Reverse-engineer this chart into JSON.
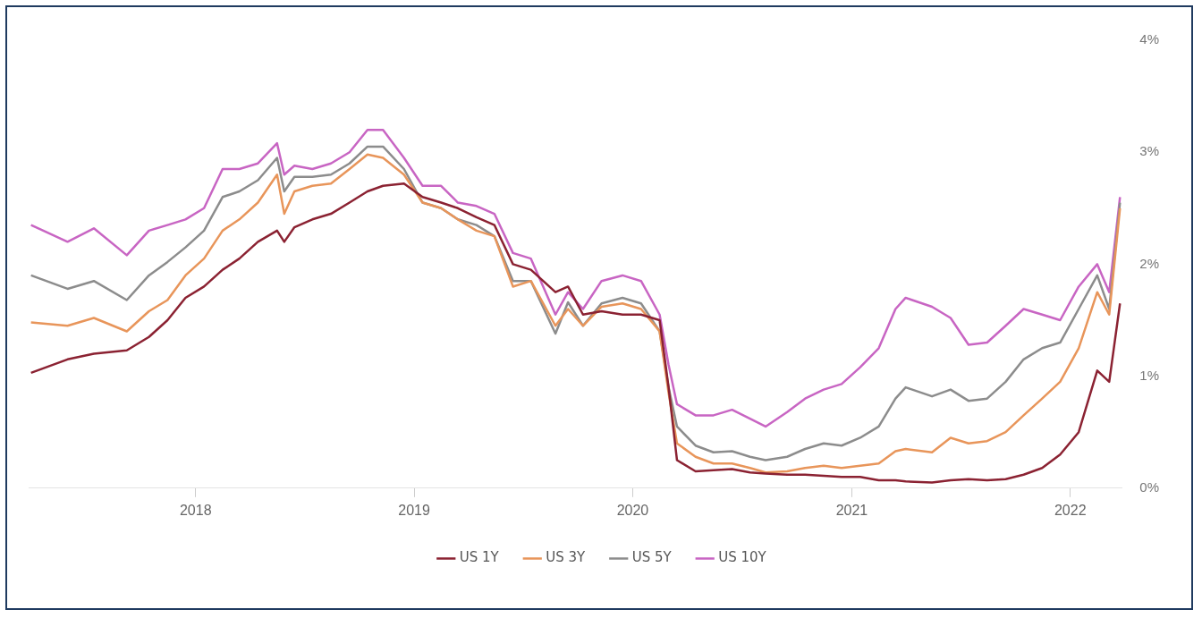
{
  "chart_data": {
    "type": "line",
    "x": [
      "2017-04-01",
      "2017-06-01",
      "2017-07-15",
      "2017-09-08",
      "2017-10-15",
      "2017-11-15",
      "2017-12-15",
      "2018-01-15",
      "2018-02-15",
      "2018-03-15",
      "2018-04-15",
      "2018-05-17",
      "2018-05-29",
      "2018-06-15",
      "2018-07-15",
      "2018-08-15",
      "2018-09-15",
      "2018-10-15",
      "2018-11-10",
      "2018-12-15",
      "2019-01-15",
      "2019-02-15",
      "2019-03-15",
      "2019-04-15",
      "2019-05-15",
      "2019-06-15",
      "2019-07-15",
      "2019-08-25",
      "2019-09-15",
      "2019-10-10",
      "2019-11-10",
      "2019-12-15",
      "2020-01-15",
      "2020-02-15",
      "2020-03-01",
      "2020-03-15",
      "2020-04-15",
      "2020-05-15",
      "2020-06-15",
      "2020-07-15",
      "2020-08-10",
      "2020-09-15",
      "2020-10-15",
      "2020-11-15",
      "2020-12-15",
      "2021-01-15",
      "2021-02-15",
      "2021-03-15",
      "2021-04-01",
      "2021-05-15",
      "2021-06-15",
      "2021-07-15",
      "2021-08-15",
      "2021-09-15",
      "2021-10-15",
      "2021-11-15",
      "2021-12-15",
      "2022-01-15",
      "2022-02-15",
      "2022-03-07",
      "2022-03-25"
    ],
    "series": [
      {
        "name": "US 1Y",
        "color": "#8b2232",
        "values": [
          1.03,
          1.15,
          1.2,
          1.23,
          1.35,
          1.5,
          1.7,
          1.8,
          1.95,
          2.05,
          2.2,
          2.3,
          2.2,
          2.33,
          2.4,
          2.45,
          2.55,
          2.65,
          2.7,
          2.72,
          2.6,
          2.55,
          2.5,
          2.42,
          2.35,
          2.0,
          1.95,
          1.75,
          1.8,
          1.55,
          1.58,
          1.55,
          1.55,
          1.5,
          0.9,
          0.25,
          0.15,
          0.16,
          0.17,
          0.14,
          0.13,
          0.12,
          0.12,
          0.11,
          0.1,
          0.1,
          0.07,
          0.07,
          0.06,
          0.05,
          0.07,
          0.08,
          0.07,
          0.08,
          0.12,
          0.18,
          0.3,
          0.5,
          1.05,
          0.95,
          1.65
        ]
      },
      {
        "name": "US 3Y",
        "color": "#e8955a",
        "values": [
          1.48,
          1.45,
          1.52,
          1.4,
          1.58,
          1.68,
          1.9,
          2.05,
          2.3,
          2.4,
          2.55,
          2.8,
          2.45,
          2.65,
          2.7,
          2.72,
          2.85,
          2.98,
          2.95,
          2.8,
          2.55,
          2.5,
          2.4,
          2.3,
          2.25,
          1.8,
          1.85,
          1.45,
          1.6,
          1.45,
          1.62,
          1.65,
          1.6,
          1.4,
          0.85,
          0.4,
          0.28,
          0.22,
          0.22,
          0.18,
          0.14,
          0.15,
          0.18,
          0.2,
          0.18,
          0.2,
          0.22,
          0.33,
          0.35,
          0.32,
          0.45,
          0.4,
          0.42,
          0.5,
          0.65,
          0.8,
          0.95,
          1.25,
          1.75,
          1.55,
          2.5
        ]
      },
      {
        "name": "US 5Y",
        "color": "#8c8c8c",
        "values": [
          1.9,
          1.78,
          1.85,
          1.68,
          1.9,
          2.02,
          2.15,
          2.3,
          2.6,
          2.65,
          2.75,
          2.95,
          2.65,
          2.78,
          2.78,
          2.8,
          2.9,
          3.05,
          3.05,
          2.85,
          2.55,
          2.5,
          2.4,
          2.35,
          2.25,
          1.85,
          1.85,
          1.38,
          1.66,
          1.45,
          1.65,
          1.7,
          1.65,
          1.4,
          0.9,
          0.55,
          0.38,
          0.32,
          0.33,
          0.28,
          0.25,
          0.28,
          0.35,
          0.4,
          0.38,
          0.45,
          0.55,
          0.8,
          0.9,
          0.82,
          0.88,
          0.78,
          0.8,
          0.95,
          1.15,
          1.25,
          1.3,
          1.6,
          1.9,
          1.6,
          2.55
        ]
      },
      {
        "name": "US 10Y",
        "color": "#c865c3",
        "values": [
          2.35,
          2.2,
          2.32,
          2.08,
          2.3,
          2.35,
          2.4,
          2.5,
          2.85,
          2.85,
          2.9,
          3.08,
          2.8,
          2.88,
          2.85,
          2.9,
          3.0,
          3.2,
          3.2,
          2.95,
          2.7,
          2.7,
          2.55,
          2.52,
          2.45,
          2.1,
          2.05,
          1.55,
          1.75,
          1.6,
          1.85,
          1.9,
          1.85,
          1.55,
          1.1,
          0.75,
          0.65,
          0.65,
          0.7,
          0.62,
          0.55,
          0.68,
          0.8,
          0.88,
          0.93,
          1.08,
          1.25,
          1.6,
          1.7,
          1.62,
          1.52,
          1.28,
          1.3,
          1.45,
          1.6,
          1.55,
          1.5,
          1.8,
          2.0,
          1.75,
          2.6
        ]
      }
    ],
    "xlim": [
      "2017-03-28",
      "2022-03-28"
    ],
    "xticks": [
      {
        "value": "2018-01-01",
        "label": "2018"
      },
      {
        "value": "2019-01-01",
        "label": "2019"
      },
      {
        "value": "2020-01-01",
        "label": "2020"
      },
      {
        "value": "2021-01-01",
        "label": "2021"
      },
      {
        "value": "2022-01-01",
        "label": "2022"
      }
    ],
    "ylim": [
      0,
      4
    ],
    "yticks": [
      {
        "value": 0,
        "label": "0%"
      },
      {
        "value": 1,
        "label": "1%"
      },
      {
        "value": 2,
        "label": "2%"
      },
      {
        "value": 3,
        "label": "3%"
      },
      {
        "value": 4,
        "label": "4%"
      }
    ],
    "grid": false,
    "legend": "bottom",
    "marker": "none",
    "line_style": "solid"
  }
}
